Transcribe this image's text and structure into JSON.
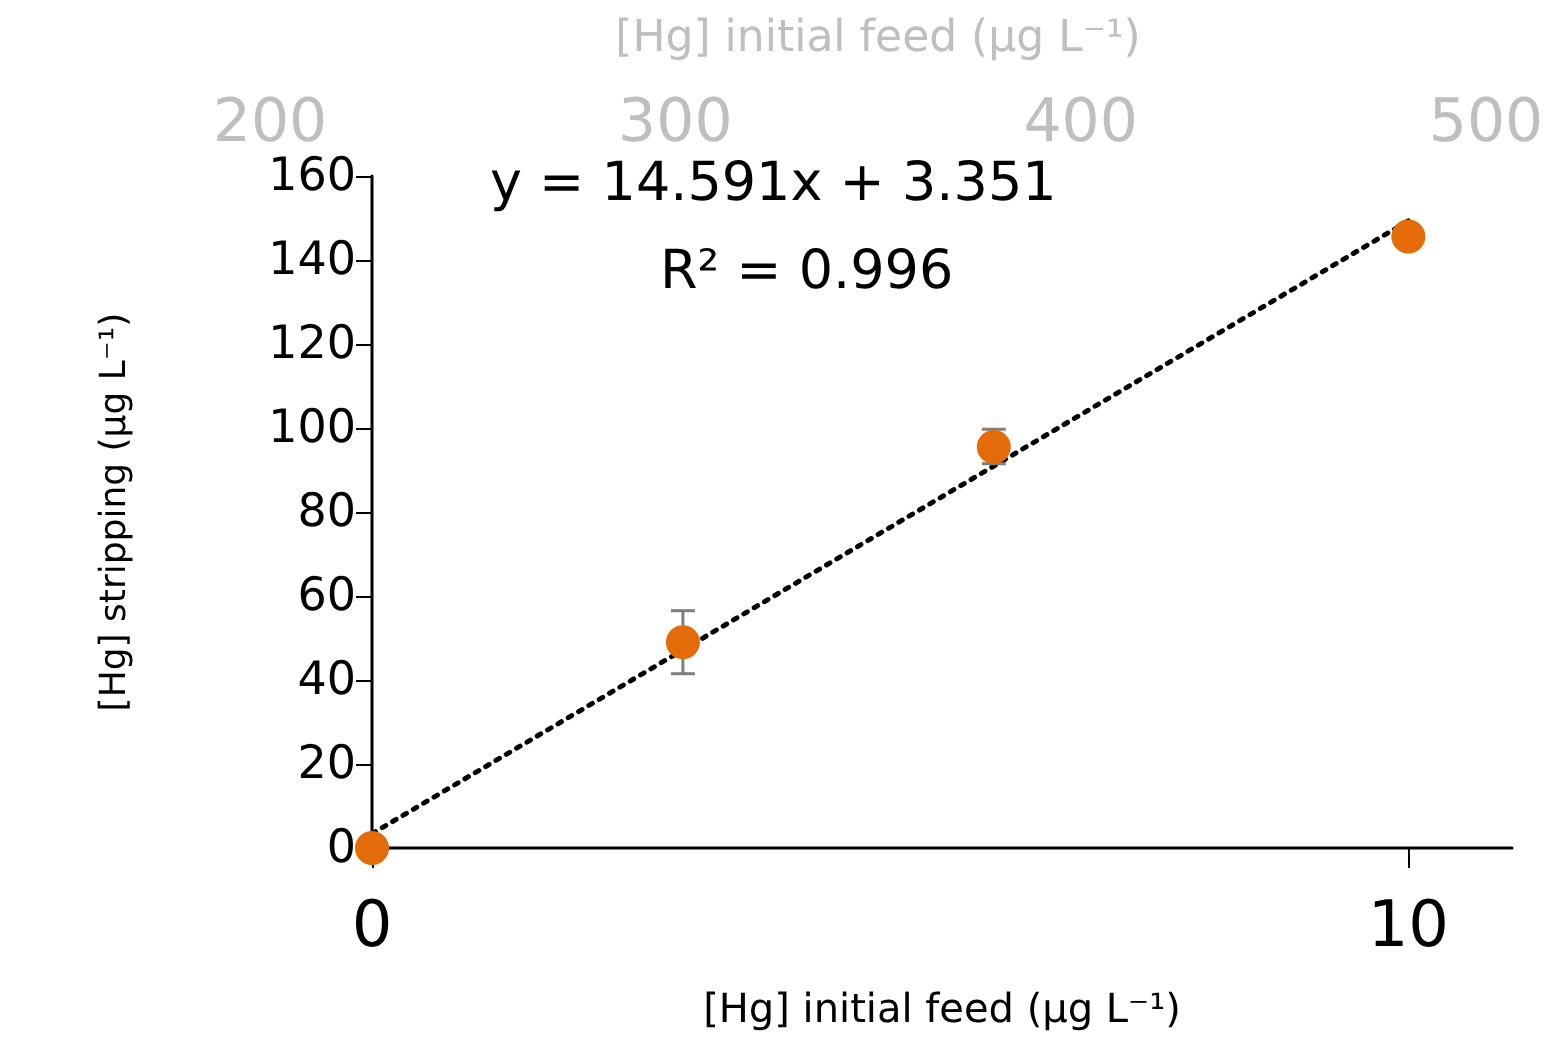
{
  "chart_data": {
    "type": "scatter",
    "xlabel": "[Hg] initial feed (µg L⁻¹)",
    "ylabel": "[Hg] stripping (µg L⁻¹)",
    "x2label": "[Hg] initial feed (µg L⁻¹)",
    "x": [
      0,
      3,
      6,
      10
    ],
    "series": [
      {
        "color": "#e36c09",
        "marker": "circle",
        "values": [
          0,
          49,
          95.5,
          145.6
        ],
        "errors": [
          null,
          [
            41.5,
            56.5
          ],
          [
            91.5,
            99.7
          ],
          null
        ]
      },
      {
        "type": "line",
        "color": "#000000",
        "marker": "none",
        "line_style": "dotted",
        "x": [
          0,
          10
        ],
        "values": [
          3.4,
          149.3
        ]
      }
    ],
    "xlim": [
      0,
      11
    ],
    "xticks": [
      0,
      10
    ],
    "ylim": [
      0,
      160
    ],
    "yticks": [
      0,
      20,
      40,
      60,
      80,
      100,
      120,
      140,
      160
    ],
    "x2lim": [
      200,
      500
    ],
    "x2ticks": [
      200,
      300,
      400,
      500
    ],
    "annotations": [
      "y = 14.591x + 3.351",
      "R² = 0.996"
    ],
    "grid": false
  }
}
